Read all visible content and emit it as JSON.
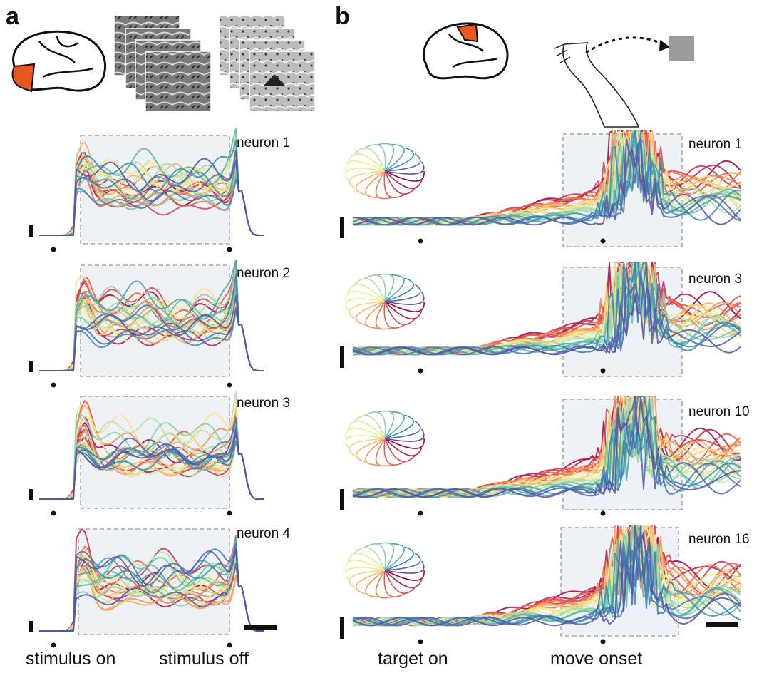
{
  "panels": {
    "a": "a",
    "b": "b"
  },
  "panel_a": {
    "neurons": [
      "neuron 1",
      "neuron 2",
      "neuron 3",
      "neuron 4"
    ],
    "xlabels": [
      "stimulus on",
      "stimulus off"
    ]
  },
  "panel_b": {
    "neurons": [
      "neuron 1",
      "neuron 3",
      "neuron 10",
      "neuron 16"
    ],
    "xlabels": [
      "target on",
      "move onset"
    ]
  },
  "colors": {
    "highlight": "#e8571f",
    "window_fill": "#eef2f7",
    "window_border": "#9a9a9a",
    "target": "#9c9c9c",
    "palette": [
      "#9e0142",
      "#d53e4f",
      "#f46d43",
      "#fdae61",
      "#fee08b",
      "#e6f598",
      "#abdda4",
      "#66c2a5",
      "#3288bd",
      "#5e4fa2"
    ]
  },
  "icons": [
    "brain-visual-cortex-icon",
    "fish-image-stack-icon",
    "lion-image-stack-icon",
    "brain-motor-cortex-icon",
    "reaching-arm-icon",
    "reach-target-icon"
  ]
}
